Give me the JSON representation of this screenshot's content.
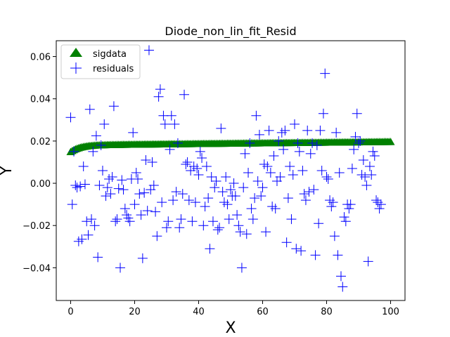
{
  "chart_data": {
    "type": "scatter",
    "title": "Diode_non_lin_fit_Resid",
    "xlabel": "X",
    "ylabel": "Y",
    "xlim": [
      -4.5,
      104.5
    ],
    "ylim": [
      -0.0555,
      0.0675
    ],
    "x_ticks": [
      0,
      20,
      40,
      60,
      80,
      100
    ],
    "y_ticks": [
      -0.04,
      -0.02,
      0.0,
      0.02,
      0.04,
      0.06
    ],
    "x_tick_labels": [
      "0",
      "20",
      "40",
      "60",
      "80",
      "100"
    ],
    "y_tick_labels": [
      "−0.04",
      "−0.02",
      "0.00",
      "0.02",
      "0.04",
      "0.06"
    ],
    "grid": false,
    "legend_position": "top-left",
    "series": [
      {
        "name": "sigdata",
        "marker": "triangle",
        "color": "#008000",
        "x_start": 0,
        "x_end": 100,
        "count": 201,
        "y_start": 0.0148,
        "y_end": 0.0196,
        "note_shape": "rises quickly from ~0.015 to ~0.018 by x≈5, then slowly to ~0.020"
      },
      {
        "name": "residuals",
        "marker": "plus",
        "color": "#0000ff",
        "points": [
          [
            0.0,
            0.0312
          ],
          [
            0.5,
            -0.01
          ],
          [
            1.0,
            0.015
          ],
          [
            1.5,
            -0.001
          ],
          [
            2.0,
            -0.002
          ],
          [
            2.5,
            -0.0275
          ],
          [
            3.0,
            -0.0015
          ],
          [
            3.5,
            -0.0265
          ],
          [
            4.0,
            0.008
          ],
          [
            4.5,
            -0.0005
          ],
          [
            5.0,
            -0.018
          ],
          [
            5.5,
            -0.0245
          ],
          [
            6.0,
            0.035
          ],
          [
            6.5,
            -0.017
          ],
          [
            7.0,
            0.015
          ],
          [
            7.5,
            -0.02
          ],
          [
            8.0,
            0.0225
          ],
          [
            8.5,
            -0.035
          ],
          [
            9.0,
            -0.001
          ],
          [
            9.5,
            0.018
          ],
          [
            10.0,
            0.006
          ],
          [
            10.5,
            0.028
          ],
          [
            11.0,
            -0.006
          ],
          [
            11.5,
            -0.002
          ],
          [
            12.0,
            0.002
          ],
          [
            12.5,
            -0.005
          ],
          [
            13.0,
            0.003
          ],
          [
            13.5,
            0.0365
          ],
          [
            14.0,
            -0.018
          ],
          [
            14.5,
            -0.017
          ],
          [
            15.0,
            -0.0025
          ],
          [
            15.5,
            -0.04
          ],
          [
            16.0,
            0.0015
          ],
          [
            16.5,
            -0.003
          ],
          [
            17.0,
            -0.012
          ],
          [
            17.5,
            -0.015
          ],
          [
            18.0,
            -0.0165
          ],
          [
            18.5,
            -0.018
          ],
          [
            19.0,
            0.002
          ],
          [
            19.5,
            0.024
          ],
          [
            20.0,
            -0.01
          ],
          [
            20.5,
            0.005
          ],
          [
            21.0,
            0.002
          ],
          [
            21.5,
            -0.005
          ],
          [
            22.0,
            -0.015
          ],
          [
            22.5,
            -0.0355
          ],
          [
            23.0,
            -0.0045
          ],
          [
            23.5,
            0.011
          ],
          [
            24.0,
            -0.013
          ],
          [
            24.5,
            0.063
          ],
          [
            25.0,
            -0.003
          ],
          [
            25.5,
            0.01
          ],
          [
            26.0,
            -0.001
          ],
          [
            26.5,
            -0.0135
          ],
          [
            27.0,
            -0.025
          ],
          [
            27.5,
            0.041
          ],
          [
            28.0,
            0.0445
          ],
          [
            28.5,
            -0.009
          ],
          [
            29.0,
            0.032
          ],
          [
            29.5,
            0.028
          ],
          [
            30.0,
            -0.021
          ],
          [
            30.5,
            -0.018
          ],
          [
            31.0,
            0.016
          ],
          [
            31.5,
            0.032
          ],
          [
            32.0,
            -0.008
          ],
          [
            32.5,
            0.028
          ],
          [
            33.0,
            -0.004
          ],
          [
            33.5,
            0.019
          ],
          [
            34.0,
            -0.021
          ],
          [
            34.5,
            -0.017
          ],
          [
            35.0,
            -0.005
          ],
          [
            35.5,
            0.042
          ],
          [
            36.0,
            0.009
          ],
          [
            36.5,
            0.01
          ],
          [
            37.0,
            -0.008
          ],
          [
            37.5,
            0.006
          ],
          [
            38.0,
            -0.018
          ],
          [
            38.5,
            0.008
          ],
          [
            39.0,
            -0.009
          ],
          [
            39.5,
            0.007
          ],
          [
            40.0,
            0.004
          ],
          [
            40.5,
            0.015
          ],
          [
            41.0,
            0.012
          ],
          [
            41.5,
            -0.02
          ],
          [
            42.0,
            -0.011
          ],
          [
            42.5,
            0.008
          ],
          [
            43.0,
            -0.007
          ],
          [
            43.5,
            -0.031
          ],
          [
            44.0,
            0.003
          ],
          [
            44.5,
            -0.018
          ],
          [
            45.0,
            -0.002
          ],
          [
            45.5,
            0.001
          ],
          [
            46.0,
            -0.022
          ],
          [
            46.5,
            -0.021
          ],
          [
            47.0,
            0.026
          ],
          [
            47.5,
            -0.004
          ],
          [
            48.0,
            -0.009
          ],
          [
            48.5,
            0.003
          ],
          [
            49.0,
            -0.01
          ],
          [
            49.5,
            -0.017
          ],
          [
            50.0,
            -0.003
          ],
          [
            50.5,
            -0.006
          ],
          [
            51.0,
            0.0
          ],
          [
            51.5,
            -0.006
          ],
          [
            52.0,
            -0.015
          ],
          [
            52.5,
            -0.02
          ],
          [
            53.0,
            -0.023
          ],
          [
            53.5,
            -0.04
          ],
          [
            54.0,
            -0.002
          ],
          [
            54.5,
            0.014
          ],
          [
            55.0,
            -0.024
          ],
          [
            55.5,
            0.005
          ],
          [
            56.0,
            0.019
          ],
          [
            56.5,
            -0.012
          ],
          [
            57.0,
            -0.017
          ],
          [
            57.5,
            -0.007
          ],
          [
            58.0,
            0.032
          ],
          [
            58.5,
            0.001
          ],
          [
            59.0,
            0.023
          ],
          [
            59.5,
            -0.006
          ],
          [
            60.0,
            -0.002
          ],
          [
            60.5,
            0.009
          ],
          [
            61.0,
            -0.023
          ],
          [
            61.5,
            0.008
          ],
          [
            62.0,
            0.025
          ],
          [
            62.5,
            0.005
          ],
          [
            63.0,
            -0.011
          ],
          [
            63.5,
            0.013
          ],
          [
            64.0,
            -0.012
          ],
          [
            64.5,
            0.001
          ],
          [
            65.0,
            0.02
          ],
          [
            65.5,
            0.003
          ],
          [
            66.0,
            0.024
          ],
          [
            66.5,
            0.016
          ],
          [
            67.0,
            0.025
          ],
          [
            67.5,
            -0.028
          ],
          [
            68.0,
            -0.007
          ],
          [
            68.5,
            0.008
          ],
          [
            69.0,
            -0.017
          ],
          [
            69.5,
            0.004
          ],
          [
            70.0,
            0.028
          ],
          [
            70.5,
            -0.031
          ],
          [
            71.0,
            0.019
          ],
          [
            71.5,
            0.015
          ],
          [
            72.0,
            -0.032
          ],
          [
            72.5,
            0.006
          ],
          [
            73.0,
            -0.005
          ],
          [
            73.5,
            -0.008
          ],
          [
            74.0,
            0.025
          ],
          [
            74.5,
            -0.004
          ],
          [
            75.0,
            0.014
          ],
          [
            75.5,
            0.019
          ],
          [
            76.0,
            -0.003
          ],
          [
            76.5,
            -0.034
          ],
          [
            77.0,
            0.018
          ],
          [
            77.5,
            -0.019
          ],
          [
            78.0,
            0.025
          ],
          [
            78.5,
            0.006
          ],
          [
            79.0,
            0.033
          ],
          [
            79.5,
            0.052
          ],
          [
            80.0,
            0.003
          ],
          [
            80.5,
            0.002
          ],
          [
            81.0,
            -0.008
          ],
          [
            81.5,
            -0.011
          ],
          [
            82.0,
            -0.009
          ],
          [
            82.5,
            -0.025
          ],
          [
            83.0,
            0.024
          ],
          [
            83.5,
            -0.034
          ],
          [
            84.0,
            0.005
          ],
          [
            84.5,
            -0.044
          ],
          [
            85.0,
            -0.049
          ],
          [
            85.5,
            -0.016
          ],
          [
            86.0,
            -0.018
          ],
          [
            86.5,
            -0.01
          ],
          [
            87.0,
            -0.012
          ],
          [
            87.5,
            -0.01
          ],
          [
            88.0,
            0.007
          ],
          [
            88.5,
            0.016
          ],
          [
            89.0,
            0.022
          ],
          [
            89.5,
            0.033
          ],
          [
            90.0,
            0.019
          ],
          [
            90.5,
            0.02
          ],
          [
            91.0,
            0.004
          ],
          [
            91.5,
            0.011
          ],
          [
            92.0,
            0.003
          ],
          [
            92.5,
            -0.001
          ],
          [
            93.0,
            -0.037
          ],
          [
            93.5,
            0.008
          ],
          [
            94.0,
            0.004
          ],
          [
            94.5,
            0.015
          ],
          [
            95.0,
            0.013
          ],
          [
            95.5,
            -0.008
          ],
          [
            96.0,
            -0.009
          ],
          [
            96.5,
            -0.012
          ],
          [
            97.0,
            -0.01
          ]
        ]
      }
    ]
  }
}
